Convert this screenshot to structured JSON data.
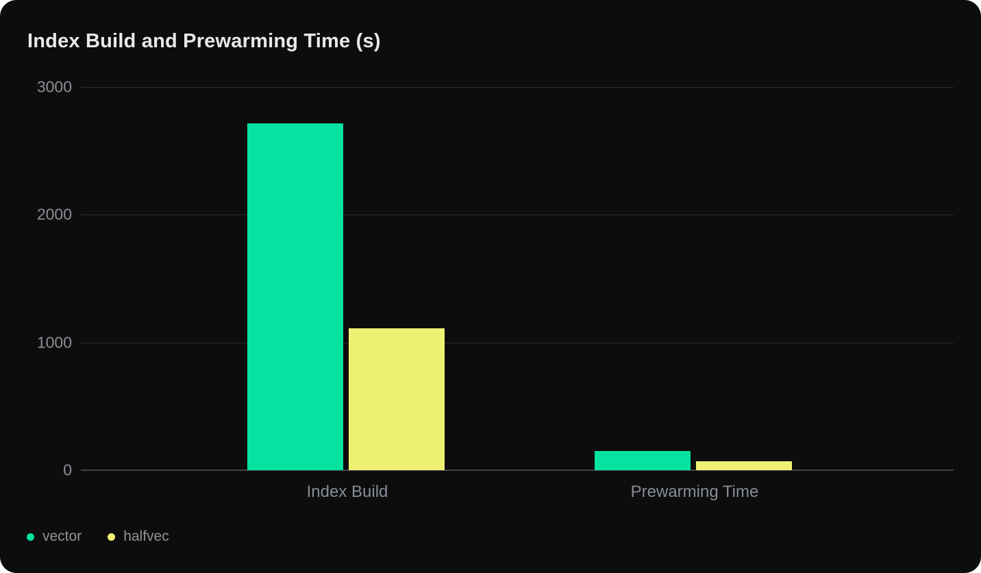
{
  "card": {
    "title": "Index Build and Prewarming Time (s)"
  },
  "colors": {
    "page_bg": "#FFFFFF",
    "card_bg": "#0D0D0E",
    "title_text": "#E9E9EA",
    "axis_text": "#8B9096",
    "gridline": "#2E2E2E",
    "zero_line": "#454545",
    "vector": "#06E3A1",
    "halfvec": "#EFF175"
  },
  "chart_data": {
    "type": "bar",
    "title": "Index Build and Prewarming Time (s)",
    "categories": [
      "Index Build",
      "Prewarming Time"
    ],
    "series": [
      {
        "name": "vector",
        "color": "#06E3A1",
        "values": [
          2715,
          150
        ]
      },
      {
        "name": "halfvec",
        "color": "#EFF175",
        "values": [
          1110,
          70
        ]
      }
    ],
    "xlabel": "",
    "ylabel": "",
    "unit": "s",
    "yticks": [
      0,
      1000,
      2000,
      3000
    ],
    "ylim": [
      0,
      3000
    ],
    "grid": true,
    "legend_position": "bottom-left"
  },
  "legend": {
    "items": [
      {
        "label": "vector",
        "color": "#06E3A1"
      },
      {
        "label": "halfvec",
        "color": "#EFF175"
      }
    ]
  }
}
